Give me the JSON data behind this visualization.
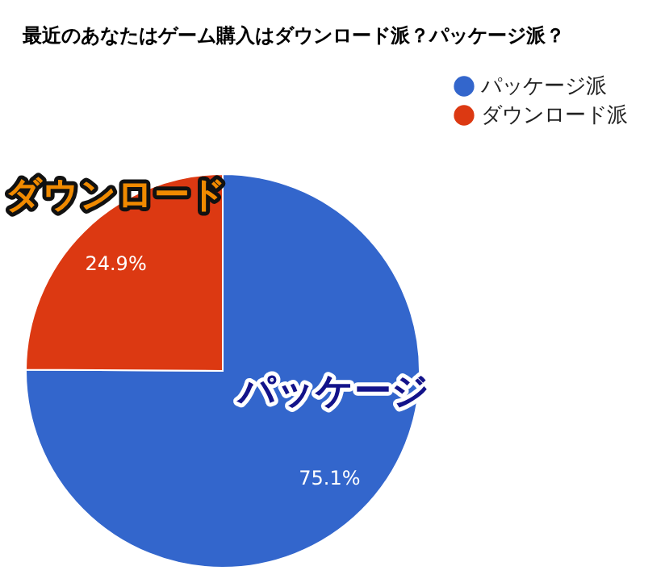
{
  "chart_data": {
    "type": "pie",
    "title": "最近のあなたはゲーム購入はダウンロード派？パッケージ派？",
    "categories": [
      "パッケージ派",
      "ダウンロード派"
    ],
    "values": [
      75.1,
      24.9
    ],
    "colors": [
      "#3366cc",
      "#dc3912"
    ],
    "value_labels": [
      "75.1%",
      "24.9%"
    ],
    "legend": "top right",
    "annotations": [
      "ダウンロード",
      "パッケージ"
    ]
  }
}
